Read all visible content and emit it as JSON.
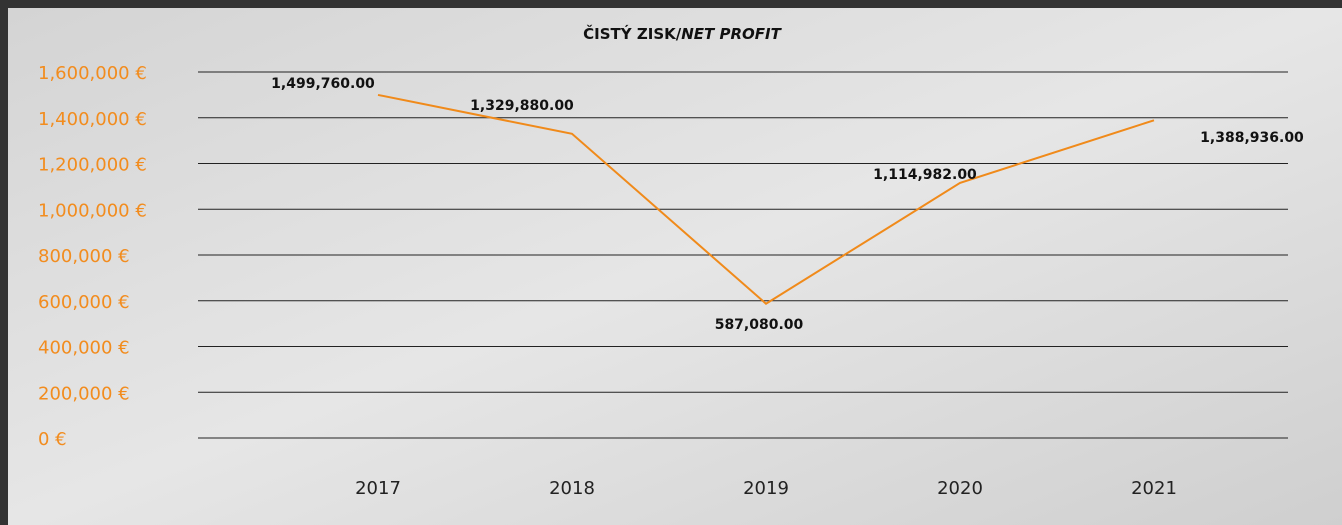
{
  "chart_data": {
    "type": "line",
    "title": "ČISTÝ ZISK/",
    "title_italic": "NET PROFIT",
    "categories": [
      "2017",
      "2018",
      "2019",
      "2020",
      "2021"
    ],
    "series": [
      {
        "color": "#f08a1a",
        "values": [
          1499760,
          1329880,
          587080,
          1114982,
          1388936
        ],
        "value_labels": [
          "1,499,760.00",
          "1,329,880.00",
          "587,080.00",
          "1,114,982.00",
          "1,388,936.00"
        ]
      }
    ],
    "ylim": [
      0,
      1600000
    ],
    "yticks": [
      {
        "value": 0,
        "label": "0 €"
      },
      {
        "value": 200000,
        "label": "200,000 €"
      },
      {
        "value": 400000,
        "label": "400,000 €"
      },
      {
        "value": 600000,
        "label": "600,000 €"
      },
      {
        "value": 800000,
        "label": "800,000 €"
      },
      {
        "value": 1000000,
        "label": "1,000,000 €"
      },
      {
        "value": 1200000,
        "label": "1,200,000 €"
      },
      {
        "value": 1400000,
        "label": "1,400,000 €"
      },
      {
        "value": 1600000,
        "label": "1,600,000 €"
      }
    ],
    "tick_color": "#f28c1e",
    "grid": true
  }
}
